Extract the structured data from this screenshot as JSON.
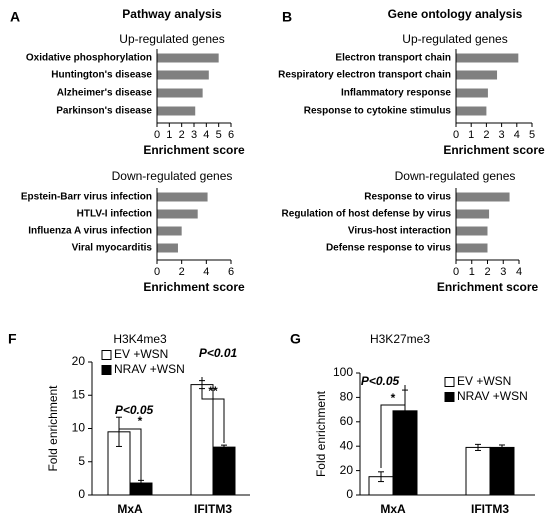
{
  "chart_data": [
    {
      "type": "barh",
      "panel": "A",
      "title": "Pathway analysis",
      "subtitle": "Up-regulated genes",
      "categories": [
        "Oxidative phosphorylation",
        "Huntington's disease",
        "Alzheimer's disease",
        "Parkinson's disease"
      ],
      "values": [
        5.0,
        4.2,
        3.7,
        3.1
      ],
      "color": "#808080",
      "xlim": [
        0,
        6
      ],
      "xticks": [
        0,
        1,
        2,
        3,
        4,
        5,
        6
      ],
      "xlabel": "Enrichment score"
    },
    {
      "type": "barh",
      "subtitle": "Down-regulated genes",
      "categories": [
        "Epstein-Barr virus infection",
        "HTLV-I infection",
        "Influenza A virus infection",
        "Viral myocarditis"
      ],
      "values": [
        4.1,
        3.3,
        2.0,
        1.7
      ],
      "color": "#808080",
      "xlim": [
        0,
        6
      ],
      "xticks": [
        0,
        2,
        4,
        6
      ],
      "xlabel": "Enrichment score"
    },
    {
      "type": "barh",
      "panel": "B",
      "title": "Gene ontology analysis",
      "subtitle": "Up-regulated genes",
      "categories": [
        "Electron transport chain",
        "Respiratory electron transport chain",
        "Inflammatory response",
        "Response to cytokine stimulus"
      ],
      "values": [
        4.1,
        2.7,
        2.1,
        2.0
      ],
      "color": "#808080",
      "xlim": [
        0,
        5
      ],
      "xticks": [
        0,
        1,
        2,
        3,
        4,
        5
      ],
      "xlabel": "Enrichment score"
    },
    {
      "type": "barh",
      "subtitle": "Down-regulated genes",
      "categories": [
        "Response to virus",
        "Regulation of host defense by virus",
        "Virus-host interaction",
        "Defense response to virus"
      ],
      "values": [
        3.4,
        2.1,
        2.0,
        2.0
      ],
      "color": "#808080",
      "xlim": [
        0,
        4
      ],
      "xticks": [
        0,
        1,
        2,
        3,
        4
      ],
      "xlabel": "Enrichment score"
    },
    {
      "type": "bar",
      "panel": "F",
      "title": "H3K4me3",
      "ylabel": "Fold enrichment",
      "categories": [
        "MxA",
        "IFITM3"
      ],
      "series": [
        {
          "name": "EV +WSN",
          "color": "#ffffff",
          "values": [
            9.5,
            16.6
          ],
          "errors": [
            2.2,
            0.6
          ]
        },
        {
          "name": "NRAV +WSN",
          "color": "#000000",
          "values": [
            1.8,
            7.2
          ],
          "errors": [
            0.4,
            0.3
          ]
        }
      ],
      "ylim": [
        0,
        20
      ],
      "yticks": [
        0,
        5,
        10,
        15,
        20
      ],
      "legend": "upper left",
      "annotations": [
        "P<0.05",
        "*",
        "P<0.01",
        "**"
      ]
    },
    {
      "type": "bar",
      "panel": "G",
      "title": "H3K27me3",
      "ylabel": "Fold enrichment",
      "categories": [
        "MxA",
        "IFITM3"
      ],
      "series": [
        {
          "name": "EV +WSN",
          "color": "#ffffff",
          "values": [
            15,
            39
          ],
          "errors": [
            4,
            2.5
          ]
        },
        {
          "name": "NRAV +WSN",
          "color": "#000000",
          "values": [
            69,
            39
          ],
          "errors": [
            17,
            2
          ]
        }
      ],
      "ylim": [
        0,
        100
      ],
      "yticks": [
        0,
        20,
        40,
        60,
        80,
        100
      ],
      "legend": "upper right",
      "annotations": [
        "P<0.05",
        "*"
      ]
    }
  ]
}
